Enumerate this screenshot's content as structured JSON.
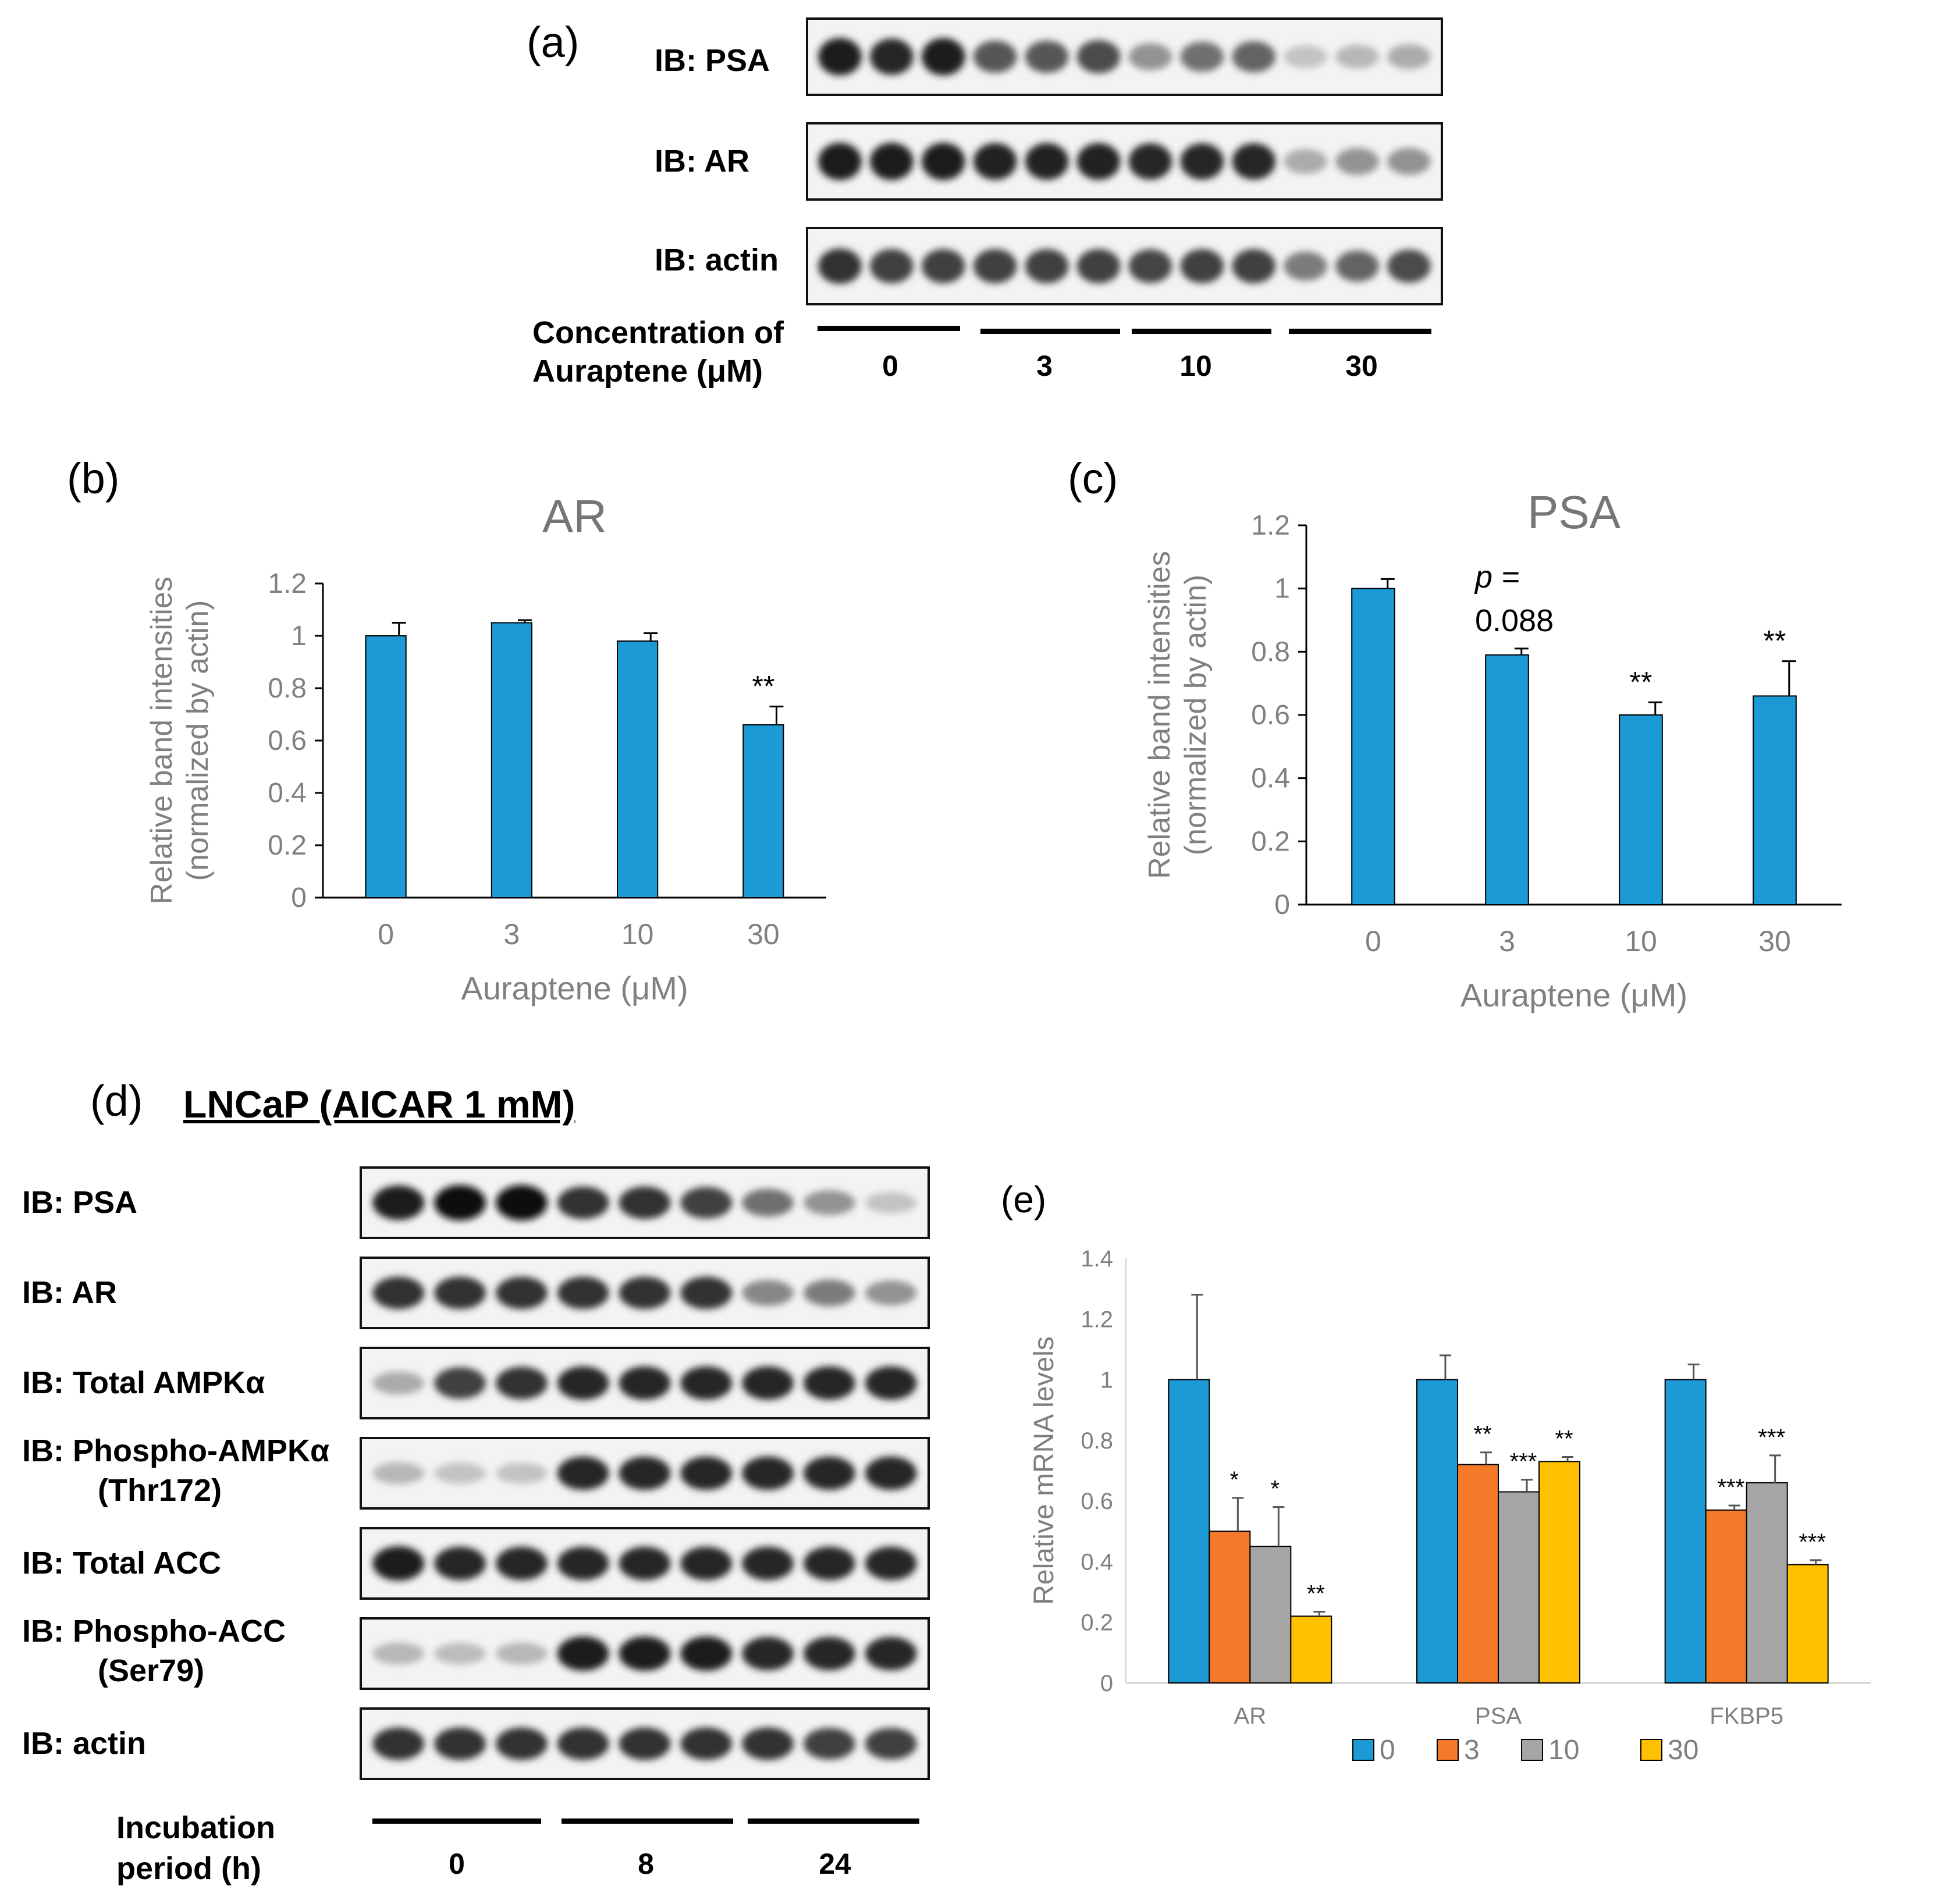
{
  "panel_a": {
    "label": "(a)",
    "blots": [
      {
        "label": "IB: PSA",
        "profile": [
          0.95,
          0.9,
          0.95,
          0.7,
          0.7,
          0.75,
          0.45,
          0.6,
          0.65,
          0.25,
          0.3,
          0.35
        ]
      },
      {
        "label": "IB: AR",
        "profile": [
          0.95,
          0.95,
          0.95,
          0.92,
          0.92,
          0.92,
          0.9,
          0.9,
          0.9,
          0.35,
          0.45,
          0.45
        ]
      },
      {
        "label": "IB: actin",
        "profile": [
          0.85,
          0.8,
          0.8,
          0.8,
          0.8,
          0.8,
          0.78,
          0.8,
          0.8,
          0.55,
          0.65,
          0.75
        ]
      }
    ],
    "x_label_line1": "Concentration of",
    "x_label_line2": "Auraptene (μM)",
    "groups": [
      "0",
      "3",
      "10",
      "30"
    ]
  },
  "panel_b": {
    "label": "(b)",
    "chart_data": {
      "type": "bar",
      "title": "AR",
      "ylabel_line1": "Relative band intensities",
      "ylabel_line2": "(normalized by actin)",
      "xlabel": "Auraptene (μM)",
      "categories": [
        "0",
        "3",
        "10",
        "30"
      ],
      "values": [
        1.0,
        1.05,
        0.98,
        0.66
      ],
      "errors": [
        0.05,
        0.01,
        0.03,
        0.07
      ],
      "annotations": [
        "",
        "",
        "",
        "**"
      ],
      "ylim": [
        0,
        1.2
      ],
      "yticks": [
        "0",
        "0.2",
        "0.4",
        "0.6",
        "0.8",
        "1",
        "1.2"
      ],
      "color": "#1b9ad6"
    }
  },
  "panel_c": {
    "label": "(c)",
    "chart_data": {
      "type": "bar",
      "title": "PSA",
      "ylabel_line1": "Relative band intensities",
      "ylabel_line2": "(normalized by actin)",
      "xlabel": "Auraptene (μM)",
      "categories": [
        "0",
        "3",
        "10",
        "30"
      ],
      "values": [
        1.0,
        0.79,
        0.6,
        0.66
      ],
      "errors": [
        0.03,
        0.02,
        0.04,
        0.11
      ],
      "annotations": [
        "",
        "",
        "**",
        "**"
      ],
      "p_note_line1": "p =",
      "p_note_line2": "0.088",
      "ylim": [
        0,
        1.2
      ],
      "yticks": [
        "0",
        "0.2",
        "0.4",
        "0.6",
        "0.8",
        "1",
        "1.2"
      ],
      "color": "#1b9ad6"
    }
  },
  "panel_d": {
    "label": "(d)",
    "title": "LNCaP (AICAR 1 mM)",
    "blots": [
      {
        "label": "IB: PSA",
        "label2": "",
        "profile": [
          0.95,
          1.0,
          1.0,
          0.85,
          0.85,
          0.8,
          0.6,
          0.45,
          0.25
        ]
      },
      {
        "label": "IB: AR",
        "label2": "",
        "profile": [
          0.85,
          0.85,
          0.85,
          0.85,
          0.85,
          0.85,
          0.5,
          0.55,
          0.45
        ]
      },
      {
        "label": "IB: Total AMPKα",
        "label2": "",
        "profile": [
          0.35,
          0.8,
          0.85,
          0.9,
          0.9,
          0.9,
          0.9,
          0.9,
          0.9
        ]
      },
      {
        "label": "IB: Phospho-AMPKα",
        "label2": "(Thr172)",
        "profile": [
          0.3,
          0.25,
          0.25,
          0.9,
          0.9,
          0.9,
          0.9,
          0.9,
          0.9
        ]
      },
      {
        "label": "IB: Total ACC",
        "label2": "",
        "profile": [
          0.95,
          0.9,
          0.9,
          0.9,
          0.9,
          0.9,
          0.9,
          0.9,
          0.9
        ]
      },
      {
        "label": "IB: Phospho-ACC",
        "label2": "(Ser79)",
        "profile": [
          0.3,
          0.28,
          0.3,
          0.95,
          0.95,
          0.95,
          0.9,
          0.9,
          0.9
        ]
      },
      {
        "label": "IB: actin",
        "label2": "",
        "profile": [
          0.85,
          0.85,
          0.85,
          0.85,
          0.85,
          0.85,
          0.85,
          0.8,
          0.8
        ]
      }
    ],
    "x_label_line1": "Incubation",
    "x_label_line2": "period (h)",
    "groups": [
      "0",
      "8",
      "24"
    ]
  },
  "panel_e": {
    "label": "(e)",
    "chart_data": {
      "type": "bar",
      "ylabel": "Relative mRNA levels",
      "categories": [
        "AR",
        "PSA",
        "FKBP5"
      ],
      "series": [
        {
          "name": "0",
          "color": "#1b9ad6",
          "values": [
            1.0,
            1.0,
            1.0
          ],
          "errors": [
            0.28,
            0.08,
            0.05
          ],
          "annotations": [
            "",
            "",
            ""
          ]
        },
        {
          "name": "3",
          "color": "#f47a2a",
          "values": [
            0.5,
            0.72,
            0.57
          ],
          "errors": [
            0.11,
            0.04,
            0.015
          ],
          "annotations": [
            "*",
            "**",
            "***"
          ]
        },
        {
          "name": "10",
          "color": "#a5a5a5",
          "values": [
            0.45,
            0.63,
            0.66
          ],
          "errors": [
            0.13,
            0.04,
            0.09
          ],
          "annotations": [
            "*",
            "***",
            "***"
          ]
        },
        {
          "name": "30",
          "color": "#ffc000",
          "values": [
            0.22,
            0.73,
            0.39
          ],
          "errors": [
            0.015,
            0.015,
            0.015
          ],
          "annotations": [
            "**",
            "**",
            "***"
          ]
        }
      ],
      "ylim": [
        0,
        1.4
      ],
      "yticks": [
        "0",
        "0.2",
        "0.4",
        "0.6",
        "0.8",
        "1",
        "1.2",
        "1.4"
      ],
      "legend": "bottom"
    }
  }
}
